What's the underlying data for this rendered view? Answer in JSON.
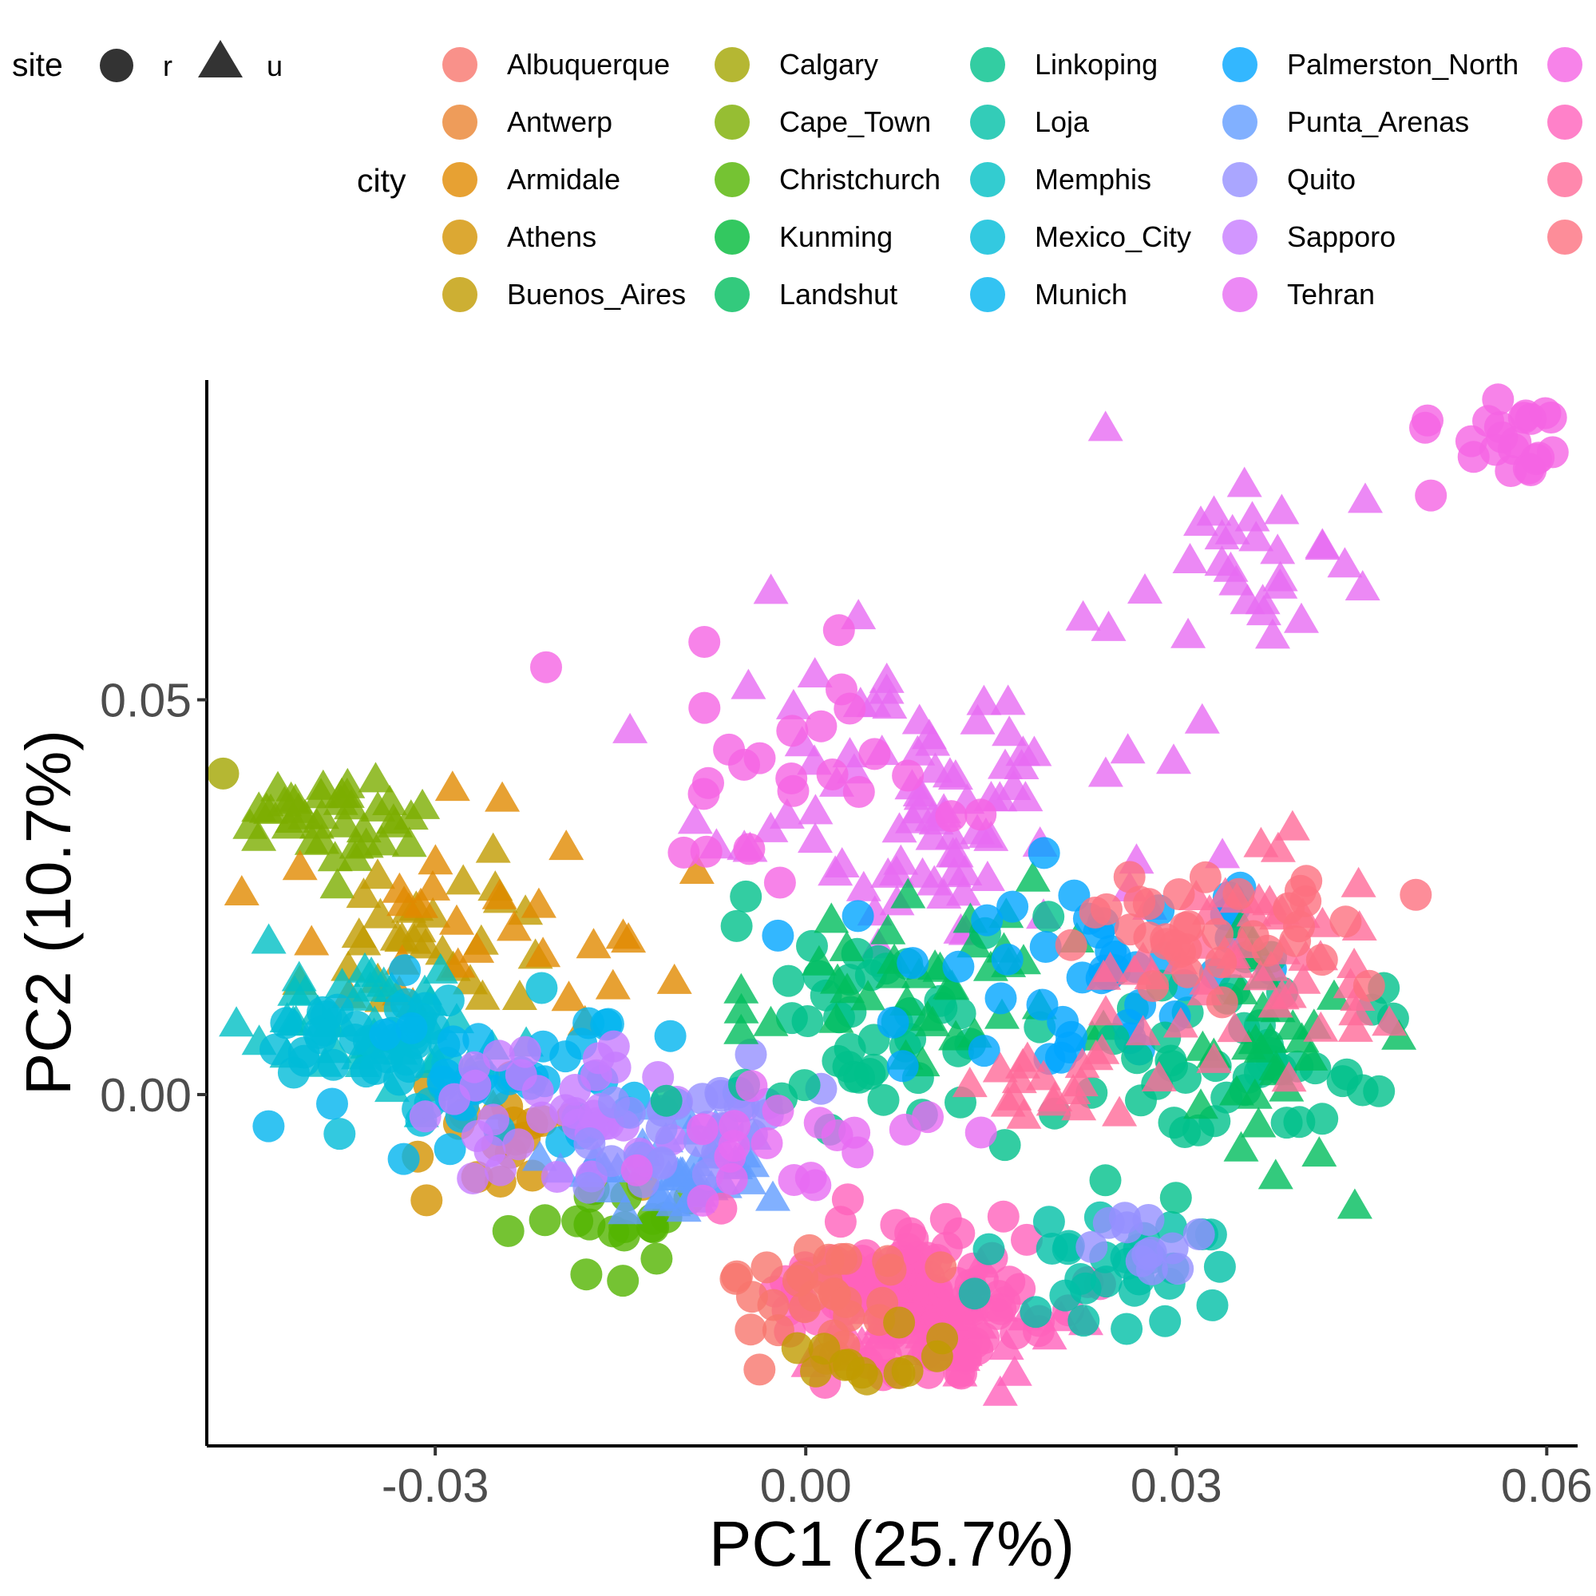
{
  "chart_data": {
    "type": "scatter",
    "xlabel": "PC1 (25.7%)",
    "ylabel": "PC2 (10.7%)",
    "xlim": [
      -0.0485,
      0.0625
    ],
    "ylim": [
      -0.0445,
      0.0905
    ],
    "x_ticks": [
      -0.03,
      0.0,
      0.03,
      0.06
    ],
    "x_tick_labels": [
      "-0.03",
      "0.00",
      "0.03",
      "0.06"
    ],
    "y_ticks": [
      0.0,
      0.05
    ],
    "y_tick_labels": [
      "0.00",
      "0.05"
    ],
    "grid": false,
    "point_alpha": 0.8,
    "shape_legend": {
      "title": "site",
      "entries": [
        {
          "label": "r",
          "shape": "circle"
        },
        {
          "label": "u",
          "shape": "triangle"
        }
      ]
    },
    "color_legend": {
      "title": "city",
      "columns": [
        [
          {
            "label": "Albuquerque",
            "color": "#F8766D"
          },
          {
            "label": "Antwerp",
            "color": "#EA8331"
          },
          {
            "label": "Armidale",
            "color": "#E18A00"
          },
          {
            "label": "Athens",
            "color": "#D39200"
          },
          {
            "label": "Buenos_Aires",
            "color": "#C09B00"
          }
        ],
        [
          {
            "label": "Calgary",
            "color": "#A3A500"
          },
          {
            "label": "Cape_Town",
            "color": "#7CAE00"
          },
          {
            "label": "Christchurch",
            "color": "#53B400"
          },
          {
            "label": "Kunming",
            "color": "#00BA38"
          },
          {
            "label": "Landshut",
            "color": "#00BD5C"
          }
        ],
        [
          {
            "label": "Linkoping",
            "color": "#00C08B"
          },
          {
            "label": "Loja",
            "color": "#00BFA6"
          },
          {
            "label": "Memphis",
            "color": "#00BFC4"
          },
          {
            "label": "Mexico_City",
            "color": "#00BCD8"
          },
          {
            "label": "Munich",
            "color": "#00B4EF"
          }
        ],
        [
          {
            "label": "Palmerston_North",
            "color": "#00A5FF"
          },
          {
            "label": "Punta_Arenas",
            "color": "#619CFF"
          },
          {
            "label": "Quito",
            "color": "#9590FF"
          },
          {
            "label": "Sapporo",
            "color": "#C77CFF"
          },
          {
            "label": "Tehran",
            "color": "#E76BF3"
          }
        ],
        [
          {
            "label": "",
            "color": "#F564E3"
          },
          {
            "label": "",
            "color": "#FF62BC"
          },
          {
            "label": "",
            "color": "#FF6A98"
          },
          {
            "label": "",
            "color": "#FC717F"
          }
        ]
      ]
    },
    "clusters": [
      {
        "color": "#A3A500",
        "shape": "circle",
        "n": 14,
        "cx": -0.0525,
        "cy": 0.0405,
        "sx": 0.0025,
        "sy": 0.0025
      },
      {
        "color": "#7CAE00",
        "shape": "triangle",
        "n": 40,
        "cx": -0.04,
        "cy": 0.035,
        "sx": 0.004,
        "sy": 0.003
      },
      {
        "color": "#C09B00",
        "shape": "triangle",
        "n": 30,
        "cx": -0.03,
        "cy": 0.02,
        "sx": 0.005,
        "sy": 0.006
      },
      {
        "color": "#E18A00",
        "shape": "triangle",
        "n": 30,
        "cx": -0.027,
        "cy": 0.02,
        "sx": 0.007,
        "sy": 0.006
      },
      {
        "color": "#D39200",
        "shape": "circle",
        "n": 20,
        "cx": -0.025,
        "cy": -0.006,
        "sx": 0.004,
        "sy": 0.004
      },
      {
        "color": "#00BFC4",
        "shape": "triangle",
        "n": 45,
        "cx": -0.036,
        "cy": 0.009,
        "sx": 0.007,
        "sy": 0.004
      },
      {
        "color": "#00BCD8",
        "shape": "circle",
        "n": 45,
        "cx": -0.033,
        "cy": 0.006,
        "sx": 0.006,
        "sy": 0.004
      },
      {
        "color": "#00B4EF",
        "shape": "circle",
        "n": 40,
        "cx": -0.023,
        "cy": 0.003,
        "sx": 0.007,
        "sy": 0.005
      },
      {
        "color": "#53B400",
        "shape": "circle",
        "n": 18,
        "cx": -0.015,
        "cy": -0.016,
        "sx": 0.003,
        "sy": 0.003
      },
      {
        "color": "#619CFF",
        "shape": "triangle",
        "n": 45,
        "cx": -0.011,
        "cy": -0.01,
        "sx": 0.004,
        "sy": 0.003
      },
      {
        "color": "#C77CFF",
        "shape": "circle",
        "n": 40,
        "cx": -0.018,
        "cy": -0.003,
        "sx": 0.006,
        "sy": 0.004
      },
      {
        "color": "#9590FF",
        "shape": "circle",
        "n": 25,
        "cx": -0.008,
        "cy": -0.005,
        "sx": 0.005,
        "sy": 0.004
      },
      {
        "color": "#E76BF3",
        "shape": "triangle",
        "n": 90,
        "cx": 0.01,
        "cy": 0.035,
        "sx": 0.008,
        "sy": 0.009
      },
      {
        "color": "#F564E3",
        "shape": "circle",
        "n": 25,
        "cx": 0.0,
        "cy": 0.042,
        "sx": 0.01,
        "sy": 0.007
      },
      {
        "color": "#E76BF3",
        "shape": "triangle",
        "n": 30,
        "cx": 0.036,
        "cy": 0.068,
        "sx": 0.005,
        "sy": 0.005
      },
      {
        "color": "#F564E3",
        "shape": "circle",
        "n": 25,
        "cx": 0.056,
        "cy": 0.082,
        "sx": 0.003,
        "sy": 0.003
      },
      {
        "color": "#FF62BC",
        "shape": "circle",
        "n": 150,
        "cx": 0.009,
        "cy": -0.025,
        "sx": 0.006,
        "sy": 0.005
      },
      {
        "color": "#FF62BC",
        "shape": "triangle",
        "n": 60,
        "cx": 0.01,
        "cy": -0.028,
        "sx": 0.005,
        "sy": 0.004
      },
      {
        "color": "#F8766D",
        "shape": "circle",
        "n": 30,
        "cx": 0.002,
        "cy": -0.026,
        "sx": 0.005,
        "sy": 0.004
      },
      {
        "color": "#C09B00",
        "shape": "circle",
        "n": 12,
        "cx": 0.006,
        "cy": -0.034,
        "sx": 0.004,
        "sy": 0.002
      },
      {
        "color": "#00C08B",
        "shape": "circle",
        "n": 50,
        "cx": 0.007,
        "cy": 0.008,
        "sx": 0.008,
        "sy": 0.008
      },
      {
        "color": "#00BD5C",
        "shape": "triangle",
        "n": 40,
        "cx": 0.01,
        "cy": 0.015,
        "sx": 0.008,
        "sy": 0.006
      },
      {
        "color": "#00BFA6",
        "shape": "circle",
        "n": 30,
        "cx": 0.025,
        "cy": -0.022,
        "sx": 0.005,
        "sy": 0.004
      },
      {
        "color": "#9590FF",
        "shape": "circle",
        "n": 12,
        "cx": 0.027,
        "cy": -0.02,
        "sx": 0.003,
        "sy": 0.003
      },
      {
        "color": "#00A5FF",
        "shape": "circle",
        "n": 45,
        "cx": 0.022,
        "cy": 0.015,
        "sx": 0.007,
        "sy": 0.006
      },
      {
        "color": "#00C08B",
        "shape": "circle",
        "n": 45,
        "cx": 0.036,
        "cy": 0.003,
        "sx": 0.006,
        "sy": 0.006
      },
      {
        "color": "#00BD5C",
        "shape": "triangle",
        "n": 30,
        "cx": 0.035,
        "cy": 0.005,
        "sx": 0.005,
        "sy": 0.008
      },
      {
        "color": "#FF6A98",
        "shape": "triangle",
        "n": 50,
        "cx": 0.038,
        "cy": 0.018,
        "sx": 0.005,
        "sy": 0.006
      },
      {
        "color": "#FC717F",
        "shape": "circle",
        "n": 35,
        "cx": 0.034,
        "cy": 0.02,
        "sx": 0.006,
        "sy": 0.004
      },
      {
        "color": "#FF6A98",
        "shape": "triangle",
        "n": 20,
        "cx": 0.021,
        "cy": 0.001,
        "sx": 0.005,
        "sy": 0.004
      },
      {
        "color": "#E76BF3",
        "shape": "circle",
        "n": 20,
        "cx": -0.002,
        "cy": -0.006,
        "sx": 0.006,
        "sy": 0.004
      }
    ]
  }
}
